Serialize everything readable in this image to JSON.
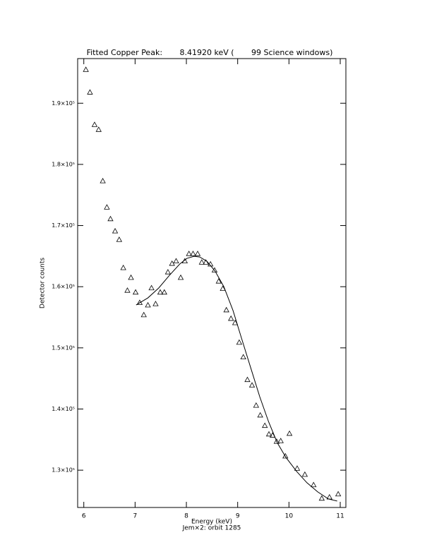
{
  "chart_data": {
    "type": "scatter",
    "title": "Fitted Copper Peak:       8.41920 keV (       99 Science windows)",
    "xlabel": "Energy (keV)",
    "caption": "Jem×2: orbit 1285",
    "ylabel": "Detector counts",
    "xlim": [
      5.88,
      11.11
    ],
    "ylim": [
      123900,
      197300
    ],
    "xticks": [
      6,
      7,
      8,
      9,
      10,
      11
    ],
    "yticks": [
      {
        "value": 130000,
        "label": "1.3×10⁵"
      },
      {
        "value": 140000,
        "label": "1.4×10⁵"
      },
      {
        "value": 150000,
        "label": "1.5×10⁵"
      },
      {
        "value": 160000,
        "label": "1.6×10⁵"
      },
      {
        "value": 170000,
        "label": "1.7×10⁵"
      },
      {
        "value": 180000,
        "label": "1.8×10⁵"
      },
      {
        "value": 190000,
        "label": "1.9×10⁵"
      }
    ],
    "color": "#000000",
    "points": {
      "x": [
        6.04,
        6.12,
        6.21,
        6.29,
        6.37,
        6.45,
        6.52,
        6.61,
        6.69,
        6.77,
        6.85,
        6.92,
        7.01,
        7.09,
        7.17,
        7.25,
        7.32,
        7.4,
        7.49,
        7.57,
        7.64,
        7.72,
        7.8,
        7.89,
        7.97,
        8.05,
        8.13,
        8.22,
        8.3,
        8.38,
        8.47,
        8.55,
        8.63,
        8.71,
        8.78,
        8.87,
        8.95,
        9.03,
        9.11,
        9.19,
        9.28,
        9.36,
        9.44,
        9.53,
        9.61,
        9.68,
        9.76,
        9.84,
        9.93,
        10.01,
        10.16,
        10.31,
        10.48,
        10.64,
        10.79,
        10.96
      ],
      "y": [
        195500,
        191800,
        186500,
        185700,
        177300,
        173000,
        171100,
        169100,
        167700,
        163100,
        159400,
        161500,
        159100,
        157400,
        155400,
        157000,
        159800,
        157200,
        159100,
        159100,
        162400,
        163800,
        164200,
        161500,
        164200,
        165400,
        165400,
        165400,
        164000,
        164000,
        163700,
        162700,
        160900,
        159700,
        156200,
        154800,
        154100,
        150900,
        148500,
        144800,
        143900,
        140600,
        139000,
        137300,
        135900,
        135700,
        134700,
        134800,
        132300,
        136000,
        130300,
        129300,
        127600,
        125400,
        125600,
        126100
      ]
    },
    "fit": {
      "x": [
        7.02,
        7.25,
        7.46,
        7.67,
        7.87,
        8.01,
        8.15,
        8.26,
        8.4,
        8.56,
        8.73,
        8.91,
        9.07,
        9.25,
        9.43,
        9.6,
        9.77,
        9.94,
        10.15,
        10.35,
        10.56,
        10.77,
        10.94
      ],
      "y": [
        157010,
        158170,
        159780,
        161860,
        163700,
        164630,
        164970,
        164860,
        164160,
        162550,
        160010,
        156090,
        151710,
        146860,
        142020,
        137980,
        134520,
        132100,
        129790,
        127950,
        126450,
        125290,
        124950
      ]
    }
  }
}
